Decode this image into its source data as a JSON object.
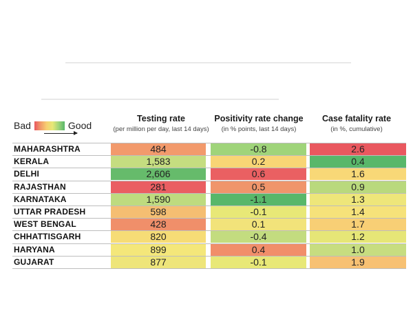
{
  "legend": {
    "bad_label": "Bad",
    "good_label": "Good"
  },
  "colors": {
    "scale": [
      "#e9585f",
      "#f19a6a",
      "#f7cf72",
      "#e7e877",
      "#9fd47a",
      "#58b76a"
    ]
  },
  "chart_data": {
    "type": "table",
    "columns": [
      {
        "key": "testing",
        "title": "Testing rate",
        "subtitle": "(per million per day, last 14 days)"
      },
      {
        "key": "positivity",
        "title": "Positivity rate change",
        "subtitle": "(in % points, last 14 days)"
      },
      {
        "key": "fatality",
        "title": "Case fatality rate",
        "subtitle": "(in %, cumulative)"
      }
    ],
    "rows": [
      {
        "state": "MAHARASHTRA",
        "testing": "484",
        "positivity": "-0.8",
        "fatality": "2.6"
      },
      {
        "state": "KERALA",
        "testing": "1,583",
        "positivity": "0.2",
        "fatality": "0.4"
      },
      {
        "state": "DELHI",
        "testing": "2,606",
        "positivity": "0.6",
        "fatality": "1.6"
      },
      {
        "state": "RAJASTHAN",
        "testing": "281",
        "positivity": "0.5",
        "fatality": "0.9"
      },
      {
        "state": "KARNATAKA",
        "testing": "1,590",
        "positivity": "-1.1",
        "fatality": "1.3"
      },
      {
        "state": "UTTAR PRADESH",
        "testing": "598",
        "positivity": "-0.1",
        "fatality": "1.4"
      },
      {
        "state": "WEST BENGAL",
        "testing": "428",
        "positivity": "0.1",
        "fatality": "1.7"
      },
      {
        "state": "CHHATTISGARH",
        "testing": "820",
        "positivity": "-0.4",
        "fatality": "1.2"
      },
      {
        "state": "HARYANA",
        "testing": "899",
        "positivity": "0.4",
        "fatality": "1.0"
      },
      {
        "state": "GUJARAT",
        "testing": "877",
        "positivity": "-0.1",
        "fatality": "1.9"
      }
    ],
    "cell_colors": {
      "testing": [
        "#f29a6c",
        "#c5dd80",
        "#66bb6b",
        "#ea5e62",
        "#bedb7f",
        "#f5be72",
        "#f08f6a",
        "#f6dc76",
        "#f4e77a",
        "#eee57a"
      ],
      "positivity": [
        "#9fd47a",
        "#f8d575",
        "#ea6062",
        "#f0956b",
        "#58b76a",
        "#e8e877",
        "#f2e37a",
        "#c3dc7f",
        "#f18e6a",
        "#e8e877"
      ],
      "fatality": [
        "#e9585f",
        "#58b76a",
        "#f8d877",
        "#b9d97d",
        "#eee67a",
        "#f6e27a",
        "#f8cf75",
        "#e6e677",
        "#c7dd80",
        "#f7c173"
      ]
    }
  }
}
